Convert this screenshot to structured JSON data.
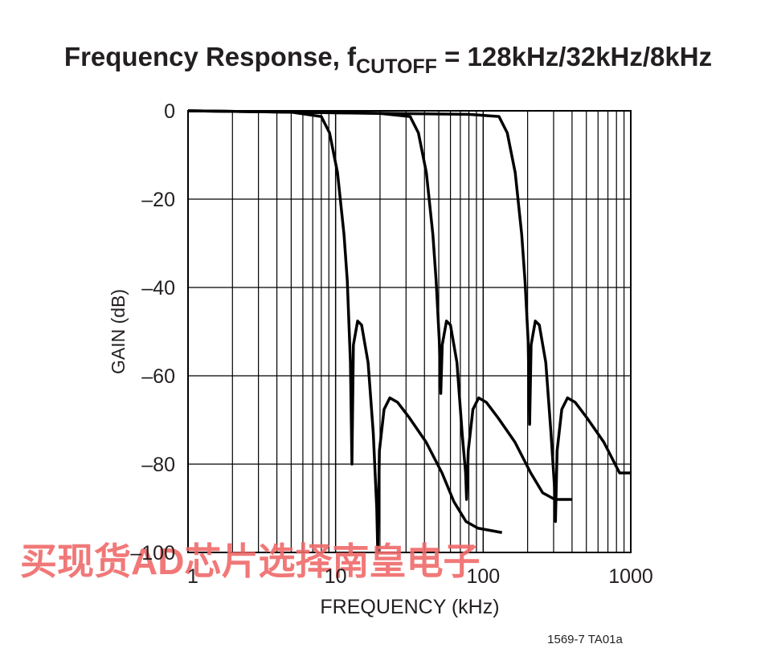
{
  "chart_data": {
    "type": "line",
    "title": [
      "Frequency Response, f",
      "CUTOFF",
      " = 128kHz/32kHz/8kHz"
    ],
    "xlabel": "FREQUENCY (kHz)",
    "ylabel": "GAIN (dB)",
    "xscale": "log",
    "grid": true,
    "xlim": [
      1,
      1000
    ],
    "ylim": [
      -100,
      0
    ],
    "xticks": [
      1,
      10,
      100,
      1000
    ],
    "xgrid_minor": [
      2,
      3,
      4,
      5,
      6,
      7,
      8,
      9,
      20,
      30,
      40,
      50,
      60,
      70,
      80,
      90,
      200,
      300,
      400,
      500,
      600,
      700,
      800,
      900
    ],
    "yticks": [
      {
        "value": -100,
        "label": "–100"
      },
      {
        "value": -80,
        "label": "–80"
      },
      {
        "value": -60,
        "label": "–60"
      },
      {
        "value": -40,
        "label": "–40"
      },
      {
        "value": -20,
        "label": "–20"
      },
      0
    ],
    "series": [
      {
        "color": "#000000",
        "x": [
          1,
          5,
          8,
          9.1,
          10.3,
          11.4,
          12,
          12.6,
          12.9,
          13.2,
          14.1,
          15,
          16.6,
          18,
          19,
          19.3,
          19.8,
          21.3,
          23.3,
          26.3,
          31.6,
          41,
          52.6,
          63.3,
          76.5,
          92,
          111,
          134
        ],
        "values": [
          0,
          -0.3,
          -1.3,
          -5,
          -14,
          -28,
          -38.5,
          -57,
          -80,
          -53,
          -47.6,
          -48.5,
          -57,
          -73,
          -90,
          -100,
          -77,
          -67.6,
          -65,
          -66,
          -69.5,
          -75,
          -82,
          -88.5,
          -93,
          -94.5,
          -95,
          -95.5
        ]
      },
      {
        "color": "#000000",
        "x": [
          1,
          20,
          32,
          36.4,
          41.2,
          45.6,
          48,
          50.4,
          51.6,
          52.8,
          56.4,
          60,
          66.4,
          72,
          76,
          77.2,
          79.2,
          85.2,
          93.2,
          105,
          126,
          164,
          210,
          253,
          306,
          400
        ],
        "values": [
          0,
          -0.6,
          -1.3,
          -5,
          -14,
          -28,
          -38.5,
          -52,
          -64,
          -53,
          -47.6,
          -48.5,
          -57,
          -73,
          -82,
          -88,
          -77,
          -67.6,
          -65,
          -66,
          -69.5,
          -75,
          -82,
          -86.5,
          -88,
          -88
        ]
      },
      {
        "color": "#000000",
        "x": [
          1,
          80,
          128,
          145.6,
          164.8,
          182.4,
          192,
          201.6,
          206.4,
          211.2,
          225.6,
          240,
          265.6,
          288,
          304,
          308.8,
          316.8,
          340.8,
          372.8,
          420,
          504,
          656,
          840,
          1000
        ],
        "values": [
          0,
          -0.8,
          -1.3,
          -5,
          -14,
          -28,
          -38.5,
          -52,
          -71,
          -53,
          -47.6,
          -48.5,
          -57,
          -73,
          -85,
          -93,
          -77,
          -67.6,
          -65,
          -66,
          -69.5,
          -75,
          -82,
          -82
        ]
      }
    ],
    "footnote": "1569-7 TA01a",
    "watermark": "买现货AD芯片选择南皇电子"
  }
}
